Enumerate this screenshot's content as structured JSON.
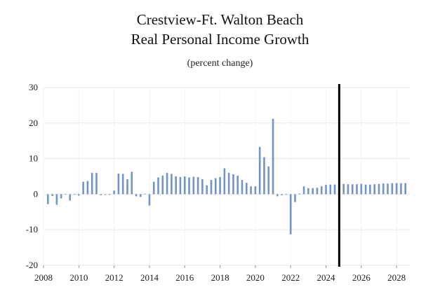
{
  "chart_data": {
    "type": "bar",
    "title_line1": "Crestview-Ft. Walton Beach",
    "title_line2": "Real Personal Income Growth",
    "subtitle": "(percent change)",
    "xlabel": "",
    "ylabel": "",
    "ylim": [
      -20,
      30
    ],
    "yticks": [
      30,
      20,
      10,
      0,
      -10,
      -20
    ],
    "ytick_labels": [
      "30",
      "20",
      "10",
      "0",
      "-10",
      "-20"
    ],
    "xlim": [
      2008.0,
      2028.75
    ],
    "xticks": [
      2008,
      2010,
      2012,
      2014,
      2016,
      2018,
      2020,
      2022,
      2024,
      2026,
      2028
    ],
    "xtick_labels": [
      "2008",
      "2010",
      "2012",
      "2014",
      "2016",
      "2018",
      "2020",
      "2022",
      "2024",
      "2026",
      "2028"
    ],
    "grid": true,
    "bar_color": "#7394c8",
    "forecast_line_x": 2024.75,
    "forecast_line_color": "#000000",
    "series": [
      {
        "x": [
          2008.25,
          2008.5,
          2008.75,
          2009.0,
          2009.25,
          2009.5,
          2009.75,
          2010.0,
          2010.25,
          2010.5,
          2010.75,
          2011.0,
          2011.25,
          2011.5,
          2011.75,
          2012.0,
          2012.25,
          2012.5,
          2012.75,
          2013.0,
          2013.25,
          2013.5,
          2013.75,
          2014.0,
          2014.25,
          2014.5,
          2014.75,
          2015.0,
          2015.25,
          2015.5,
          2015.75,
          2016.0,
          2016.25,
          2016.5,
          2016.75,
          2017.0,
          2017.25,
          2017.5,
          2017.75,
          2018.0,
          2018.25,
          2018.5,
          2018.75,
          2019.0,
          2019.25,
          2019.5,
          2019.75,
          2020.0,
          2020.25,
          2020.5,
          2020.75,
          2021.0,
          2021.25,
          2021.5,
          2021.75,
          2022.0,
          2022.25,
          2022.5,
          2022.75,
          2023.0,
          2023.25,
          2023.5,
          2023.75,
          2024.0,
          2024.25,
          2024.5,
          2024.75,
          2025.0,
          2025.25,
          2025.5,
          2025.75,
          2026.0,
          2026.25,
          2026.5,
          2026.75,
          2027.0,
          2027.25,
          2027.5,
          2027.75,
          2028.0,
          2028.25,
          2028.5
        ],
        "values": [
          -2.8,
          -0.5,
          -3.0,
          -1.2,
          0.0,
          -1.8,
          0.0,
          -0.4,
          3.5,
          3.7,
          6.0,
          6.0,
          -0.3,
          -0.2,
          -0.2,
          1.0,
          5.8,
          5.7,
          4.2,
          6.3,
          -0.6,
          -0.8,
          0.1,
          -3.2,
          3.5,
          4.7,
          5.2,
          6.0,
          5.7,
          5.0,
          4.8,
          5.0,
          4.7,
          4.9,
          4.8,
          4.2,
          2.5,
          4.0,
          4.5,
          4.8,
          7.3,
          6.0,
          5.6,
          5.2,
          4.0,
          3.2,
          2.2,
          2.2,
          13.3,
          10.4,
          7.8,
          21.2,
          -0.6,
          -0.3,
          -0.2,
          -11.3,
          -2.2,
          0.2,
          2.2,
          1.7,
          1.7,
          1.8,
          2.2,
          2.6,
          2.7,
          2.7,
          2.8,
          2.9,
          2.8,
          2.8,
          2.8,
          2.9,
          2.7,
          2.7,
          2.8,
          2.9,
          3.0,
          3.0,
          3.1,
          3.1,
          3.1,
          3.1
        ]
      }
    ]
  }
}
